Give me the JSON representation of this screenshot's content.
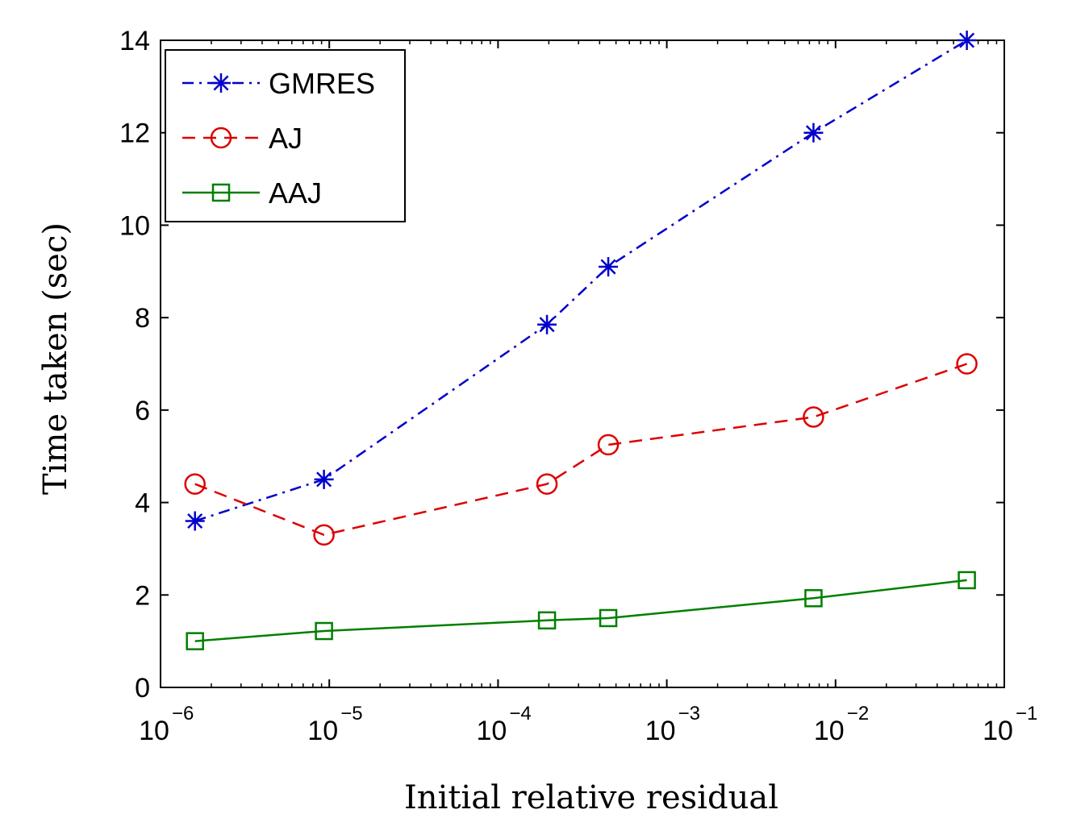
{
  "chart_data": {
    "type": "line",
    "xlabel": "Initial relative residual",
    "ylabel": "Time taken (sec)",
    "x_scale": "log",
    "xlim": [
      1e-06,
      0.1
    ],
    "ylim": [
      0,
      14
    ],
    "x_ticks": [
      {
        "value": 1e-06,
        "base": "10",
        "exp": "−6"
      },
      {
        "value": 1e-05,
        "base": "10",
        "exp": "−5"
      },
      {
        "value": 0.0001,
        "base": "10",
        "exp": "−4"
      },
      {
        "value": 0.001,
        "base": "10",
        "exp": "−3"
      },
      {
        "value": 0.01,
        "base": "10",
        "exp": "−2"
      },
      {
        "value": 0.1,
        "base": "10",
        "exp": "−1"
      }
    ],
    "y_ticks": [
      0,
      2,
      4,
      6,
      8,
      10,
      12,
      14
    ],
    "legend_position": "top-left",
    "grid": false,
    "series": [
      {
        "name": "GMRES",
        "color": "#0000cc",
        "dash": "dash-dot",
        "marker": "asterisk",
        "x": [
          1.6e-06,
          9.3e-06,
          0.000195,
          0.00045,
          0.0074,
          0.06
        ],
        "y": [
          3.6,
          4.5,
          7.85,
          9.1,
          12.0,
          14.0
        ]
      },
      {
        "name": "AJ",
        "color": "#dd0000",
        "dash": "dashed",
        "marker": "circle",
        "x": [
          1.6e-06,
          9.3e-06,
          0.000195,
          0.00045,
          0.0074,
          0.06
        ],
        "y": [
          4.4,
          3.3,
          4.4,
          5.25,
          5.85,
          7.0
        ]
      },
      {
        "name": "AAJ",
        "color": "#007f00",
        "dash": "solid",
        "marker": "square",
        "x": [
          1.6e-06,
          9.3e-06,
          0.000195,
          0.00045,
          0.0074,
          0.06
        ],
        "y": [
          1.0,
          1.22,
          1.45,
          1.5,
          1.93,
          2.32
        ]
      }
    ]
  }
}
